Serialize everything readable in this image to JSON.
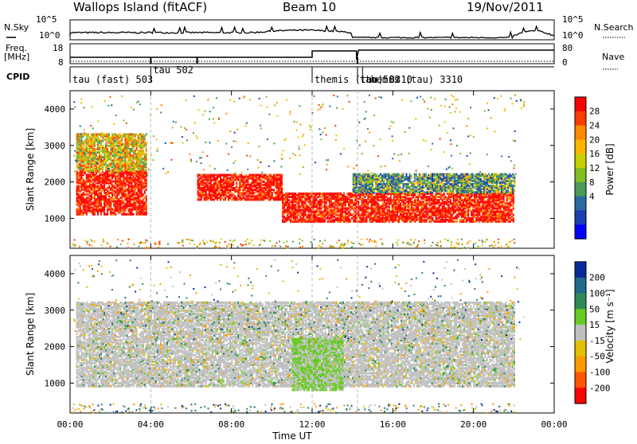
{
  "header": {
    "station": "Wallops Island (fitACF)",
    "beam": "Beam 10",
    "date": "19/Nov/2011"
  },
  "top_panel": {
    "left_label_top": "N.Sky",
    "left_label_freq": "Freq.",
    "left_label_freq_unit": "[MHz]",
    "left_label_cpid": "CPID",
    "right_label_top": "N.Search",
    "right_label_nave": "Nave",
    "left_ticks_top": [
      "10^5",
      "10^0"
    ],
    "right_ticks_top": [
      "10^5",
      "10^0"
    ],
    "left_ticks_freq": [
      "18",
      "8"
    ],
    "right_ticks_freq": [
      "80",
      "0"
    ]
  },
  "cpid": [
    {
      "label": "tau (fast) 503",
      "start": 0.0
    },
    {
      "label": "tau 502",
      "start": 4.0
    },
    {
      "label": "themis (tau) 3310",
      "start": 12.0
    },
    {
      "label": "tau 502",
      "start": 14.25
    },
    {
      "label": "themis (tau) 3310",
      "start": 14.5
    }
  ],
  "colorbars": {
    "power": {
      "label": "Power [dB]",
      "ticks": [
        "28",
        "24",
        "20",
        "16",
        "12",
        "8",
        "4"
      ],
      "colors": [
        "#ff0000",
        "#ff3c00",
        "#ff8a00",
        "#ffb400",
        "#c8d000",
        "#7fbf1f",
        "#4a9a58",
        "#2a6aa0",
        "#1a3fb0",
        "#0000ff"
      ]
    },
    "velocity": {
      "label": "Velocity [m s⁻¹]",
      "ticks": [
        "200",
        "100",
        "50",
        "15",
        "-15",
        "-50",
        "-100",
        "-200"
      ],
      "colors": [
        "#0a2a9a",
        "#1f6a8a",
        "#2e8b57",
        "#66cc22",
        "#c0c0c0",
        "#e0c000",
        "#ff9900",
        "#ff5500",
        "#ff0000"
      ]
    }
  },
  "axes": {
    "ylabel": "Slant Range [km]",
    "xlabel": "Time UT",
    "xticks": [
      "00:00",
      "04:00",
      "08:00",
      "12:00",
      "16:00",
      "20:00",
      "00:00"
    ],
    "yticks": [
      "1000",
      "2000",
      "3000",
      "4000"
    ]
  },
  "chart_data": [
    {
      "type": "heatmap",
      "name": "power",
      "x_range_hours": [
        0,
        24
      ],
      "y_range_km": [
        180,
        4500
      ],
      "bands": [
        {
          "t0": 0.3,
          "t1": 3.8,
          "r_bottom": 1100,
          "r_top": 2300,
          "level": "high"
        },
        {
          "t0": 0.3,
          "t1": 3.8,
          "r_bottom": 2300,
          "r_top": 3300,
          "level": "medium"
        },
        {
          "t0": 6.3,
          "t1": 10.5,
          "r_bottom": 1500,
          "r_top": 2200,
          "level": "high"
        },
        {
          "t0": 10.5,
          "t1": 22.0,
          "r_bottom": 900,
          "r_top": 1700,
          "level": "high"
        },
        {
          "t0": 14.0,
          "t1": 22.0,
          "r_bottom": 1700,
          "r_top": 2200,
          "level": "low"
        }
      ]
    },
    {
      "type": "heatmap",
      "name": "velocity",
      "x_range_hours": [
        0,
        24
      ],
      "y_range_km": [
        180,
        4500
      ],
      "dominant": "-15 to 15",
      "bands": [
        {
          "t0": 0.3,
          "t1": 22.0,
          "r_bottom": 900,
          "r_top": 3200,
          "level": "near-zero"
        },
        {
          "t0": 11.0,
          "t1": 13.5,
          "r_bottom": 800,
          "r_top": 2200,
          "level": "positive-50"
        }
      ]
    }
  ]
}
